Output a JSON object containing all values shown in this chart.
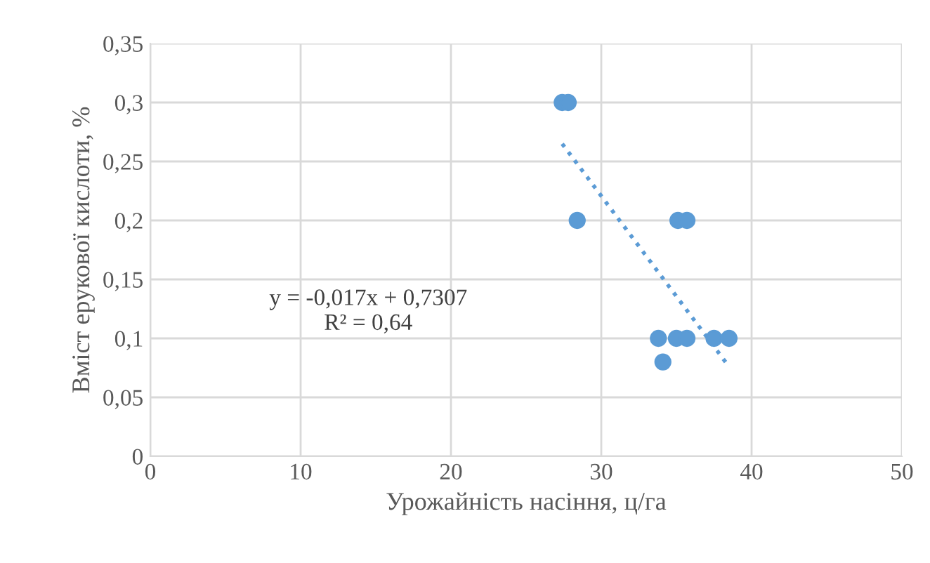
{
  "chart_data": {
    "type": "scatter",
    "xlabel": "Урожайність насіння, ц/га",
    "ylabel": "Вміст ерукової кислоти, %",
    "series": [
      {
        "color": "#5b9bd5",
        "marker": "circle",
        "x": [
          27.4,
          27.8,
          28.4,
          35.1,
          35.7,
          33.8,
          35.0,
          35.7,
          37.5,
          38.5,
          34.1
        ],
        "values": [
          0.3,
          0.3,
          0.2,
          0.2,
          0.2,
          0.1,
          0.1,
          0.1,
          0.1,
          0.1,
          0.08
        ]
      },
      {
        "type": "line",
        "color": "#5b9bd5",
        "line_style": "dotted",
        "marker": "none",
        "x": [
          27.4,
          38.5
        ],
        "values": [
          0.265,
          0.076
        ]
      }
    ],
    "annotations": [
      "y = -0,017x + 0,7307",
      "R² = 0,64"
    ],
    "xlim": [
      0,
      50
    ],
    "xticks": [
      0,
      10,
      20,
      30,
      40,
      50
    ],
    "ylim": [
      0,
      0.35
    ],
    "yticks": [
      0,
      {
        "value": 0.05,
        "label": "0,05"
      },
      {
        "value": 0.1,
        "label": "0,1"
      },
      {
        "value": 0.15,
        "label": "0,15"
      },
      {
        "value": 0.2,
        "label": "0,2"
      },
      {
        "value": 0.25,
        "label": "0,25"
      },
      {
        "value": 0.3,
        "label": "0,3"
      },
      {
        "value": 0.35,
        "label": "0,35"
      }
    ],
    "grid": true,
    "legend": false
  }
}
